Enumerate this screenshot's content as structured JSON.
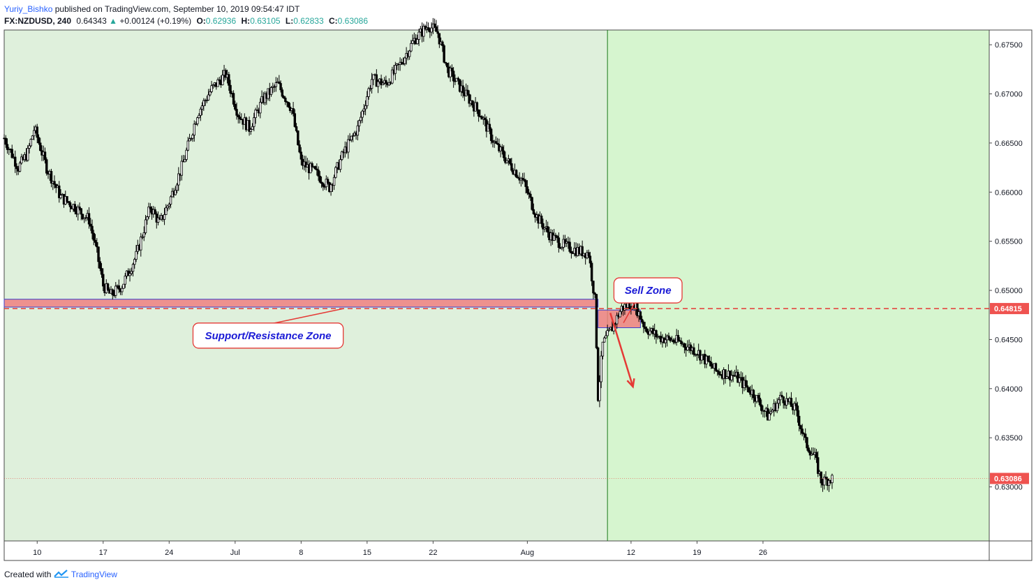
{
  "header": {
    "author": "Yuriy_Bishko",
    "published": "published on TradingView.com, September 10, 2019 09:54:47 IDT",
    "symbol": "FX:NZDUSD, 240",
    "last": "0.64343",
    "change_arrow": "▲",
    "change": "+0.00124 (+0.19%)",
    "o_label": "O:",
    "o_value": "0.62936",
    "h_label": "H:",
    "h_value": "0.63105",
    "l_label": "L:",
    "l_value": "0.62833",
    "c_label": "C:",
    "c_value": "0.63086"
  },
  "footer": {
    "created_with": "Created with",
    "brand": "TradingView"
  },
  "colors": {
    "pane_bg_left": "#dff0dc",
    "pane_bg_right": "#d6f5cf",
    "zone_fill": "#f08080",
    "zone_border": "#3a3fd0",
    "level_line": "#e53935",
    "price_label_bg": "#ef5350",
    "candle": "#000000",
    "vline": "#1b7a1b",
    "callout_text": "#1a1ad6"
  },
  "chart_data": {
    "type": "candlestick",
    "symbol": "NZDUSD",
    "timeframe": "240",
    "ylim": [
      0.6245,
      0.6765
    ],
    "y_ticks": [
      "0.67500",
      "0.67000",
      "0.66500",
      "0.66000",
      "0.65500",
      "0.65000",
      "0.64500",
      "0.64000",
      "0.63500",
      "0.63000"
    ],
    "y_tick_values": [
      0.675,
      0.67,
      0.665,
      0.66,
      0.655,
      0.65,
      0.645,
      0.64,
      0.635,
      0.63
    ],
    "x_ticks": [
      "10",
      "17",
      "24",
      "Jul",
      "8",
      "15",
      "22",
      "Aug",
      "12",
      "19",
      "26"
    ],
    "x_tick_days": [
      0,
      7,
      14,
      21,
      28,
      35,
      42,
      52,
      63,
      70,
      77
    ],
    "x_range_days": [
      -3.5,
      101
    ],
    "price_path": [
      {
        "d": -3.5,
        "p": 0.6655
      },
      {
        "d": -2,
        "p": 0.6625
      },
      {
        "d": -1,
        "p": 0.664
      },
      {
        "d": -0.3,
        "p": 0.6665
      },
      {
        "d": 1,
        "p": 0.6625
      },
      {
        "d": 2.5,
        "p": 0.6595
      },
      {
        "d": 4,
        "p": 0.6585
      },
      {
        "d": 5.5,
        "p": 0.6572
      },
      {
        "d": 6.3,
        "p": 0.654
      },
      {
        "d": 7,
        "p": 0.6505
      },
      {
        "d": 7.8,
        "p": 0.6495
      },
      {
        "d": 9,
        "p": 0.6505
      },
      {
        "d": 10.5,
        "p": 0.6535
      },
      {
        "d": 12,
        "p": 0.6585
      },
      {
        "d": 13,
        "p": 0.6568
      },
      {
        "d": 14,
        "p": 0.659
      },
      {
        "d": 15.5,
        "p": 0.663
      },
      {
        "d": 17,
        "p": 0.668
      },
      {
        "d": 18.5,
        "p": 0.6705
      },
      {
        "d": 20,
        "p": 0.672
      },
      {
        "d": 21.3,
        "p": 0.668
      },
      {
        "d": 22.5,
        "p": 0.6665
      },
      {
        "d": 24,
        "p": 0.6695
      },
      {
        "d": 25.5,
        "p": 0.671
      },
      {
        "d": 27,
        "p": 0.6685
      },
      {
        "d": 28,
        "p": 0.663
      },
      {
        "d": 29.5,
        "p": 0.662
      },
      {
        "d": 31,
        "p": 0.6605
      },
      {
        "d": 32.5,
        "p": 0.664
      },
      {
        "d": 34,
        "p": 0.6665
      },
      {
        "d": 35.5,
        "p": 0.6715
      },
      {
        "d": 37,
        "p": 0.671
      },
      {
        "d": 38.5,
        "p": 0.673
      },
      {
        "d": 40,
        "p": 0.6755
      },
      {
        "d": 41.5,
        "p": 0.677
      },
      {
        "d": 42.5,
        "p": 0.6762
      },
      {
        "d": 43.5,
        "p": 0.6725
      },
      {
        "d": 45,
        "p": 0.6705
      },
      {
        "d": 47,
        "p": 0.668
      },
      {
        "d": 48.5,
        "p": 0.665
      },
      {
        "d": 50,
        "p": 0.663
      },
      {
        "d": 51.5,
        "p": 0.6612
      },
      {
        "d": 53,
        "p": 0.6575
      },
      {
        "d": 54.5,
        "p": 0.6555
      },
      {
        "d": 56,
        "p": 0.6545
      },
      {
        "d": 57.5,
        "p": 0.654
      },
      {
        "d": 58.5,
        "p": 0.6538
      },
      {
        "d": 59.2,
        "p": 0.6488
      },
      {
        "d": 59.5,
        "p": 0.6392
      },
      {
        "d": 60,
        "p": 0.6445
      },
      {
        "d": 61,
        "p": 0.6462
      },
      {
        "d": 62,
        "p": 0.6482
      },
      {
        "d": 63.3,
        "p": 0.6488
      },
      {
        "d": 64.5,
        "p": 0.6462
      },
      {
        "d": 66,
        "p": 0.6452
      },
      {
        "d": 68,
        "p": 0.6448
      },
      {
        "d": 70,
        "p": 0.6438
      },
      {
        "d": 72,
        "p": 0.6418
      },
      {
        "d": 74,
        "p": 0.6413
      },
      {
        "d": 76,
        "p": 0.6395
      },
      {
        "d": 77.5,
        "p": 0.6372
      },
      {
        "d": 79,
        "p": 0.6392
      },
      {
        "d": 80.5,
        "p": 0.6378
      },
      {
        "d": 81.5,
        "p": 0.6345
      },
      {
        "d": 82.5,
        "p": 0.633
      },
      {
        "d": 83.2,
        "p": 0.6305
      },
      {
        "d": 84,
        "p": 0.6308
      },
      {
        "d": 84.4,
        "p": 0.63086
      }
    ],
    "levels": [
      {
        "label": "0.64815",
        "value": 0.64815,
        "style": "dashed"
      },
      {
        "label": "0.63086",
        "value": 0.63086,
        "style": "dotted-current"
      }
    ],
    "zones": [
      {
        "name": "support-resistance",
        "d_start": -3.5,
        "d_end": 59.5,
        "y_top": 0.6491,
        "y_bottom": 0.6483
      },
      {
        "name": "sell",
        "d_start": 59.5,
        "d_end": 64,
        "y_top": 0.648,
        "y_bottom": 0.6462
      }
    ],
    "vertical_line_day": 60.5,
    "highlight_start_day": 60.5,
    "annotations": [
      {
        "text": "Support/Resistance Zone",
        "d": 24.5,
        "y": 0.6454,
        "target_d": 32.5,
        "target_y": 0.64815
      },
      {
        "text": "Sell Zone",
        "d": 64.8,
        "y": 0.65,
        "target_d": 62.2,
        "target_y": 0.6467
      }
    ],
    "arrow": {
      "from_d": 60.8,
      "from_y": 0.6477,
      "to_d": 63.2,
      "to_y": 0.6402
    },
    "current_price": 0.63086,
    "grid": false
  }
}
